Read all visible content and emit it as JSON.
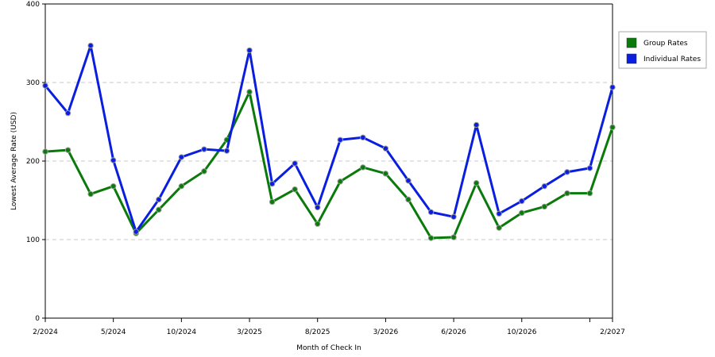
{
  "chart_data": {
    "type": "line",
    "xlabel": "Month of Check In",
    "ylabel": "Lowest Average Rate (USD)",
    "ylim": [
      0,
      400
    ],
    "y_ticks": [
      0,
      100,
      200,
      300,
      400
    ],
    "x_tick_labels": [
      {
        "index": 0,
        "label": "2/2024"
      },
      {
        "index": 3,
        "label": "5/2024"
      },
      {
        "index": 6,
        "label": "10/2024"
      },
      {
        "index": 9,
        "label": "3/2025"
      },
      {
        "index": 12,
        "label": "8/2025"
      },
      {
        "index": 15,
        "label": "3/2026"
      },
      {
        "index": 18,
        "label": "6/2026"
      },
      {
        "index": 21,
        "label": "10/2026"
      },
      {
        "index": 24,
        "label": ""
      },
      {
        "index": 25,
        "label": "2/2027"
      }
    ],
    "grid": "horizontal-dashed",
    "legend_position": "right",
    "point_count": 26,
    "series": [
      {
        "name": "Group Rates",
        "color": "#0a7a0a",
        "values": [
          212,
          214,
          158,
          168,
          108,
          138,
          168,
          187,
          227,
          288,
          148,
          164,
          120,
          174,
          192,
          184,
          151,
          102,
          103,
          172,
          115,
          134,
          142,
          159,
          159,
          243
        ]
      },
      {
        "name": "Individual Rates",
        "color": "#0a1ee0",
        "values": [
          296,
          261,
          347,
          201,
          110,
          151,
          205,
          215,
          213,
          341,
          171,
          197,
          141,
          227,
          230,
          216,
          175,
          135,
          129,
          246,
          133,
          149,
          168,
          186,
          191,
          294
        ]
      }
    ]
  }
}
